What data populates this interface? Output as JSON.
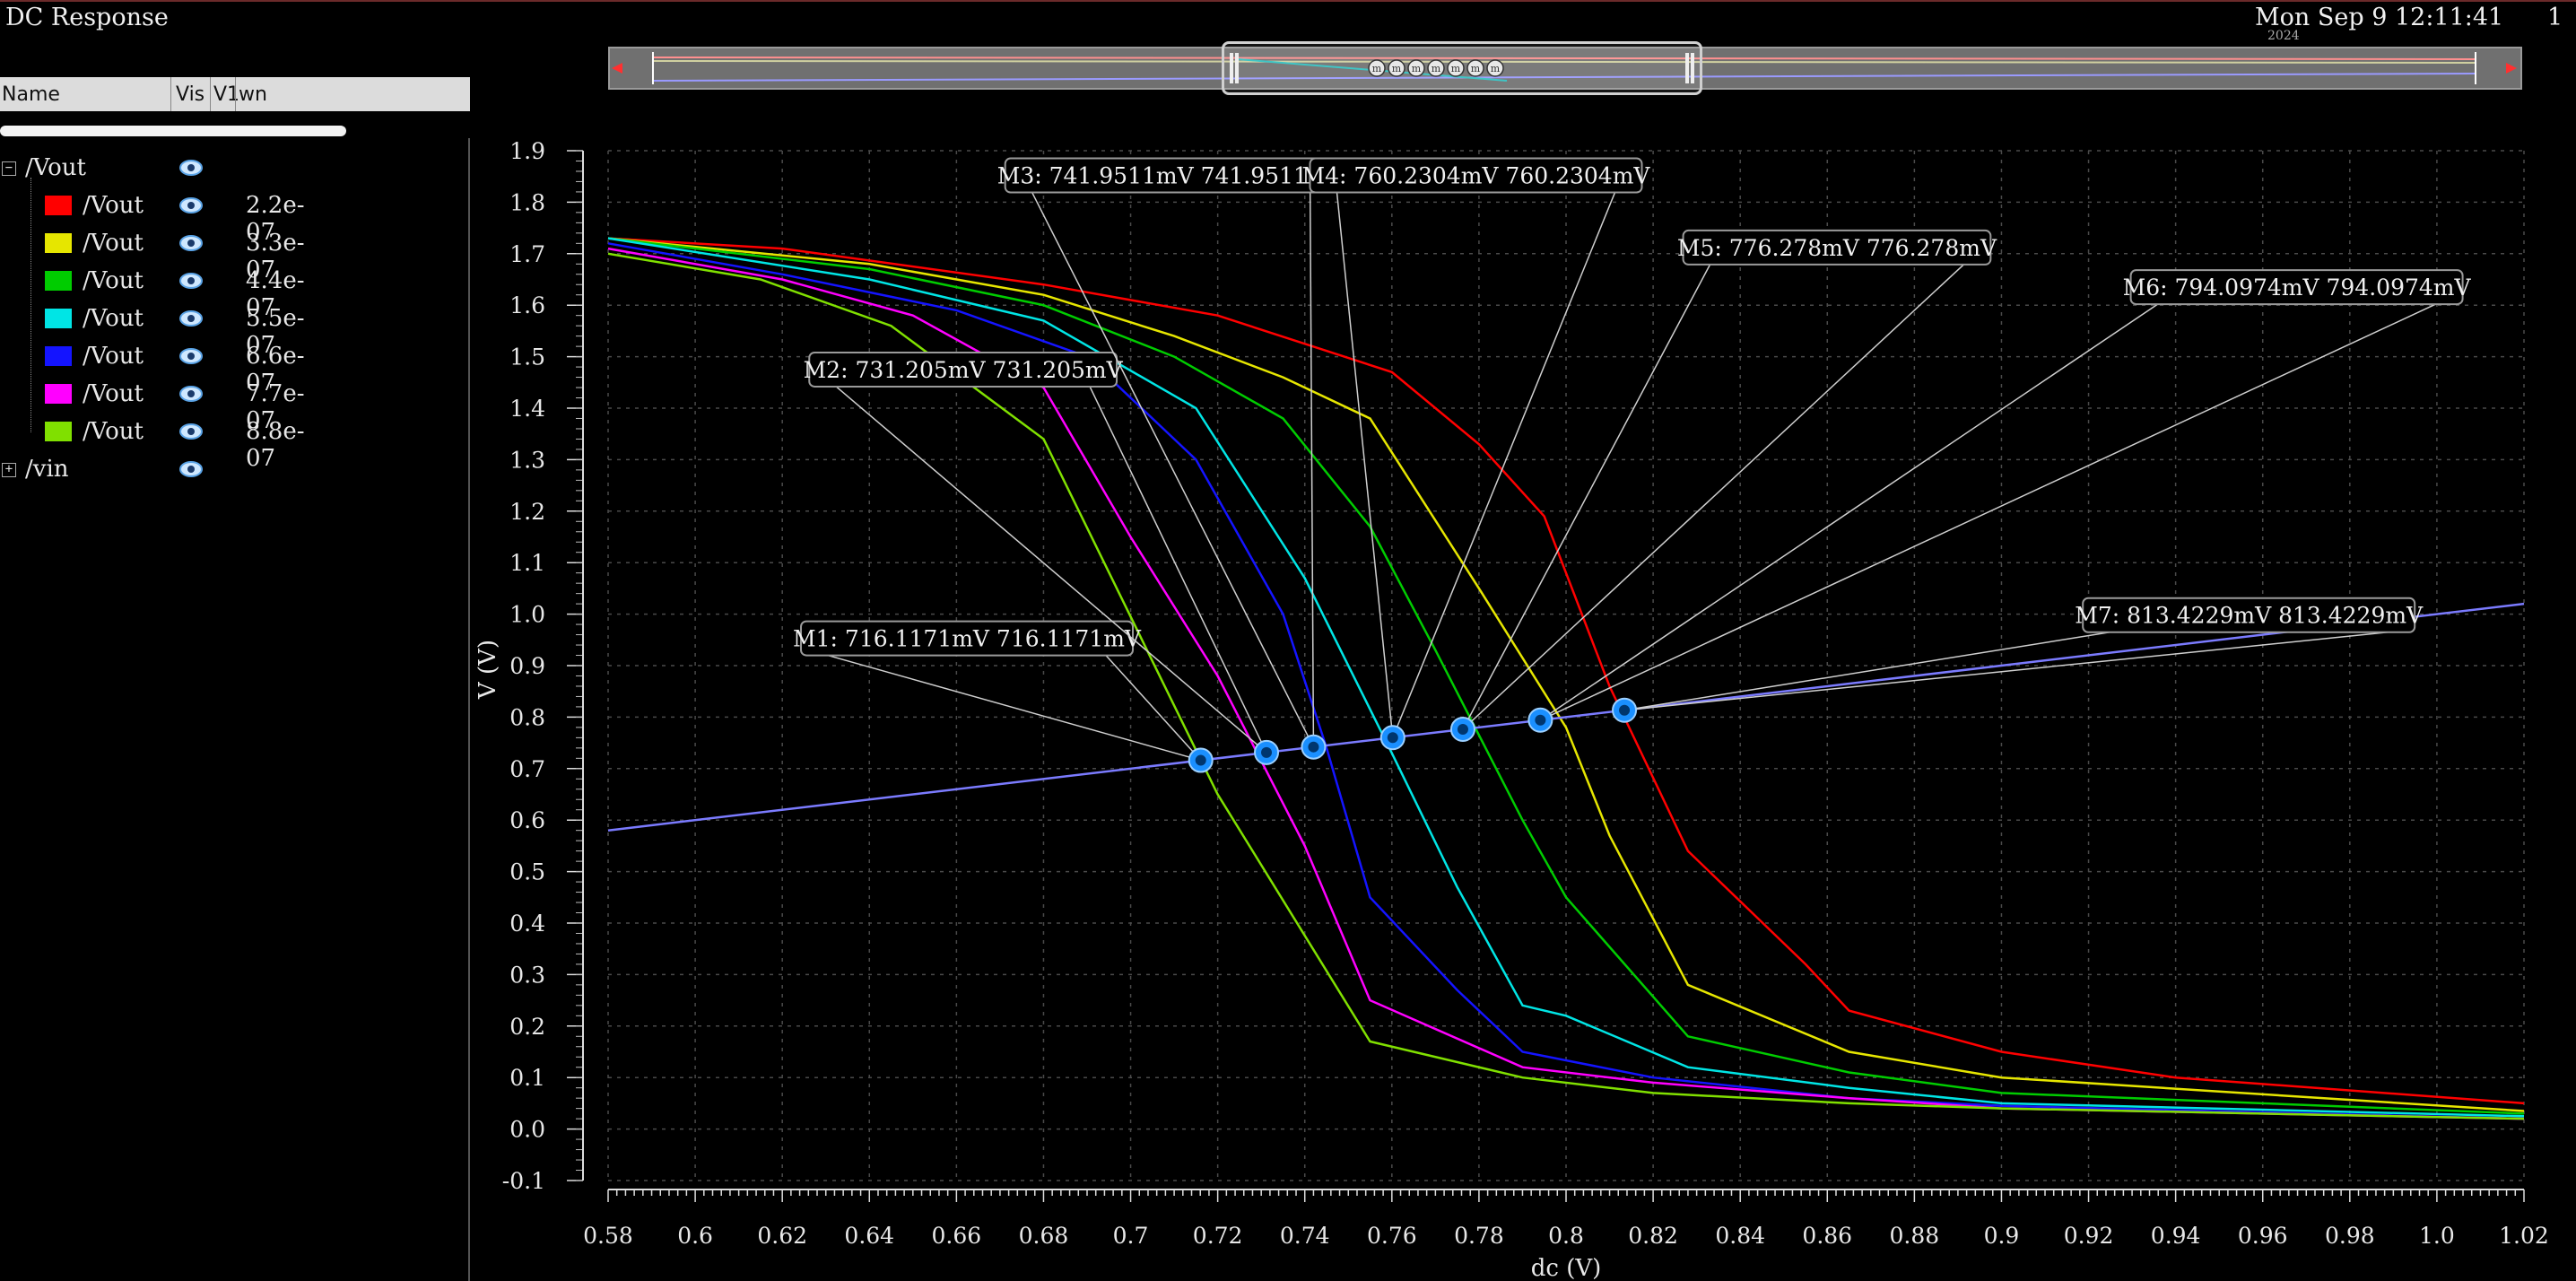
{
  "window": {
    "title": "DC Response",
    "datetime": "Mon Sep 9 12:11:41",
    "datetime_year_cut": "2024",
    "page": "1"
  },
  "sidebar": {
    "headers": {
      "name": "Name",
      "vis": "Vis",
      "v1": "V1",
      "wn": "wn"
    },
    "groups": [
      {
        "name": "/Vout",
        "expanded": true,
        "children": [
          {
            "name": "/Vout",
            "value": "2.2e-07",
            "color": "#ff0000"
          },
          {
            "name": "/Vout",
            "value": "3.3e-07",
            "color": "#e6e600"
          },
          {
            "name": "/Vout",
            "value": "4.4e-07",
            "color": "#00cc00"
          },
          {
            "name": "/Vout",
            "value": "5.5e-07",
            "color": "#00e5e5"
          },
          {
            "name": "/Vout",
            "value": "6.6e-07",
            "color": "#1414ff"
          },
          {
            "name": "/Vout",
            "value": "7.7e-07",
            "color": "#ff00ff"
          },
          {
            "name": "/Vout",
            "value": "8.8e-07",
            "color": "#80e000"
          }
        ]
      },
      {
        "name": "/vin",
        "expanded": false,
        "children": []
      }
    ]
  },
  "chart_data": {
    "type": "line",
    "xlabel": "dc (V)",
    "ylabel": "V (V)",
    "xlim": [
      0.58,
      1.02
    ],
    "ylim": [
      -0.1,
      1.9
    ],
    "xticks": [
      0.58,
      0.6,
      0.62,
      0.64,
      0.66,
      0.68,
      0.7,
      0.72,
      0.74,
      0.76,
      0.78,
      0.8,
      0.82,
      0.84,
      0.86,
      0.88,
      0.9,
      0.92,
      0.94,
      0.96,
      0.98,
      1.0,
      1.02
    ],
    "yticks": [
      -0.1,
      0.0,
      0.1,
      0.2,
      0.3,
      0.4,
      0.5,
      0.6,
      0.7,
      0.8,
      0.9,
      1.0,
      1.1,
      1.2,
      1.3,
      1.4,
      1.5,
      1.6,
      1.7,
      1.8,
      1.9
    ],
    "grid": true,
    "series": [
      {
        "name": "2.2e-07",
        "color": "#ff0000",
        "x": [
          0.58,
          0.62,
          0.68,
          0.72,
          0.76,
          0.78,
          0.795,
          0.81,
          0.828,
          0.855,
          0.865,
          0.9,
          0.94,
          1.02
        ],
        "y": [
          1.73,
          1.71,
          1.64,
          1.58,
          1.47,
          1.33,
          1.19,
          0.86,
          0.54,
          0.32,
          0.23,
          0.15,
          0.1,
          0.05
        ]
      },
      {
        "name": "3.3e-07",
        "color": "#e6e600",
        "x": [
          0.58,
          0.64,
          0.68,
          0.71,
          0.735,
          0.755,
          0.78,
          0.8,
          0.81,
          0.828,
          0.865,
          0.9,
          1.02
        ],
        "y": [
          1.73,
          1.68,
          1.62,
          1.54,
          1.46,
          1.38,
          1.05,
          0.78,
          0.57,
          0.28,
          0.15,
          0.1,
          0.035
        ]
      },
      {
        "name": "4.4e-07",
        "color": "#00cc00",
        "x": [
          0.58,
          0.64,
          0.68,
          0.71,
          0.735,
          0.755,
          0.77,
          0.79,
          0.8,
          0.828,
          0.865,
          0.9,
          1.02
        ],
        "y": [
          1.73,
          1.67,
          1.6,
          1.5,
          1.38,
          1.17,
          0.93,
          0.6,
          0.45,
          0.18,
          0.11,
          0.07,
          0.03
        ]
      },
      {
        "name": "5.5e-07",
        "color": "#00e5e5",
        "x": [
          0.58,
          0.64,
          0.68,
          0.715,
          0.74,
          0.76,
          0.775,
          0.79,
          0.8,
          0.828,
          0.865,
          0.9,
          1.02
        ],
        "y": [
          1.73,
          1.65,
          1.57,
          1.4,
          1.07,
          0.73,
          0.47,
          0.24,
          0.22,
          0.12,
          0.08,
          0.05,
          0.025
        ]
      },
      {
        "name": "6.6e-07",
        "color": "#1414ff",
        "x": [
          0.58,
          0.62,
          0.66,
          0.69,
          0.715,
          0.735,
          0.745,
          0.755,
          0.775,
          0.79,
          0.82,
          0.865,
          0.9,
          1.02
        ],
        "y": [
          1.72,
          1.66,
          1.59,
          1.5,
          1.3,
          1.0,
          0.74,
          0.45,
          0.27,
          0.15,
          0.1,
          0.06,
          0.045,
          0.02
        ]
      },
      {
        "name": "7.7e-07",
        "color": "#ff00ff",
        "x": [
          0.58,
          0.62,
          0.65,
          0.68,
          0.7,
          0.72,
          0.74,
          0.755,
          0.79,
          0.82,
          0.865,
          0.9,
          1.02
        ],
        "y": [
          1.71,
          1.65,
          1.58,
          1.44,
          1.15,
          0.88,
          0.55,
          0.25,
          0.12,
          0.09,
          0.06,
          0.04,
          0.02
        ]
      },
      {
        "name": "8.8e-07",
        "color": "#80e000",
        "x": [
          0.58,
          0.615,
          0.645,
          0.68,
          0.72,
          0.755,
          0.79,
          0.82,
          0.865,
          0.9,
          1.02
        ],
        "y": [
          1.7,
          1.65,
          1.56,
          1.34,
          0.65,
          0.17,
          0.1,
          0.07,
          0.05,
          0.04,
          0.02
        ]
      },
      {
        "name": "vin",
        "color": "#7b7bff",
        "x": [
          0.58,
          1.02
        ],
        "y": [
          0.58,
          1.02
        ]
      }
    ],
    "markers": [
      {
        "label": "M1: 716.1171mV 716.1171mV",
        "x": 0.7161,
        "y": 0.7161,
        "lx": 0.6624,
        "ly": 0.953
      },
      {
        "label": "M2: 731.205mV 731.205mV",
        "x": 0.7312,
        "y": 0.7312,
        "lx": 0.6615,
        "ly": 1.475
      },
      {
        "label": "M3: 741.9511mV 741.9511mV",
        "x": 0.742,
        "y": 0.742,
        "lx": 0.7093,
        "ly": 1.852
      },
      {
        "label": "M4: 760.2304mV 760.2304mV",
        "x": 0.7602,
        "y": 0.7602,
        "lx": 0.7793,
        "ly": 1.852
      },
      {
        "label": "M5: 776.278mV 776.278mV",
        "x": 0.7763,
        "y": 0.7763,
        "lx": 0.8622,
        "ly": 1.712
      },
      {
        "label": "M6: 794.0974mV 794.0974mV",
        "x": 0.7941,
        "y": 0.7941,
        "lx": 0.9678,
        "ly": 1.635
      },
      {
        "label": "M7: 813.4229mV 813.4229mV",
        "x": 0.8134,
        "y": 0.8134,
        "lx": 0.9568,
        "ly": 0.998
      }
    ]
  }
}
